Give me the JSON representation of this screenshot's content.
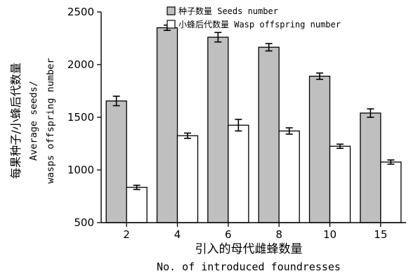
{
  "chart_data": {
    "type": "bar",
    "categories": [
      "2",
      "4",
      "6",
      "8",
      "10",
      "15"
    ],
    "series": [
      {
        "name": "种子数量 Seeds number",
        "values": [
          1655,
          2350,
          2260,
          2165,
          1890,
          1540
        ],
        "errors": [
          45,
          25,
          45,
          35,
          30,
          40
        ],
        "color": "#bfbfbf"
      },
      {
        "name": "小蜂后代数量 Wasp offspring number",
        "values": [
          835,
          1325,
          1425,
          1370,
          1225,
          1075
        ],
        "errors": [
          20,
          25,
          55,
          30,
          20,
          20
        ],
        "color": "#ffffff"
      }
    ],
    "ylim": [
      500,
      2500
    ],
    "yticks": [
      500,
      1000,
      1500,
      2000,
      2500
    ],
    "xlabel_cn": "引入的母代雌蜂数量",
    "xlabel_en": "No. of introduced foundresses",
    "ylabel_cn": "每果种子/小蜂后代数量",
    "ylabel_en_1": "Average seeds/",
    "ylabel_en_2": "wasps offspring number",
    "grid": false,
    "legend_position": "top"
  }
}
